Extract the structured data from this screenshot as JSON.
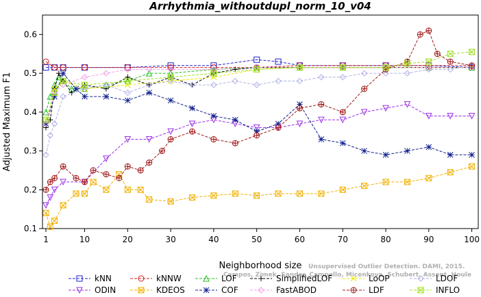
{
  "chart_data": {
    "type": "line",
    "title": "Arrhythmia_withoutdupl_norm_10_v04",
    "xlabel": "Neighborhood size",
    "ylabel": "Adjusted Maximum F1",
    "xlim": [
      1,
      100
    ],
    "ylim": [
      0.1,
      0.65
    ],
    "x_ticks": [
      1,
      10,
      20,
      30,
      40,
      50,
      60,
      70,
      80,
      90,
      100
    ],
    "y_ticks": [
      0.1,
      0.2,
      0.3,
      0.4,
      0.5,
      0.6
    ],
    "x_tick_labels": [
      "1",
      "10",
      "20",
      "30",
      "40",
      "50",
      "60",
      "70",
      "80",
      "90",
      "100"
    ],
    "y_tick_labels": [
      "0.1",
      "0.2",
      "0.3",
      "0.4",
      "0.5",
      "0.6"
    ],
    "grid": false,
    "legend_position": "bottom",
    "watermark": [
      "Campos, Zimek, Sander, Campello, Micenkova, Schubert, Assent, Houle",
      "Unsupervised Outlier Detection. DAMI, 2015."
    ],
    "series": [
      {
        "name": "kNN",
        "color": "#1f1fd0",
        "marker": "square",
        "x": [
          1,
          3,
          5,
          10,
          20,
          30,
          40,
          50,
          55,
          60,
          70,
          80,
          90,
          100
        ],
        "y": [
          0.515,
          0.515,
          0.515,
          0.515,
          0.515,
          0.52,
          0.52,
          0.535,
          0.53,
          0.52,
          0.52,
          0.52,
          0.52,
          0.515
        ]
      },
      {
        "name": "kNNW",
        "color": "#d02020",
        "marker": "circle",
        "x": [
          1,
          3,
          5,
          10,
          20,
          30,
          40,
          50,
          60,
          70,
          80,
          90,
          100
        ],
        "y": [
          0.53,
          0.515,
          0.515,
          0.515,
          0.515,
          0.515,
          0.515,
          0.515,
          0.52,
          0.52,
          0.52,
          0.52,
          0.52
        ]
      },
      {
        "name": "LOF",
        "color": "#20c020",
        "marker": "triangle-up",
        "x": [
          1,
          2,
          3,
          4,
          5,
          7,
          10,
          15,
          20,
          25,
          30,
          40,
          50,
          60,
          70,
          80,
          90,
          100
        ],
        "y": [
          0.4,
          0.44,
          0.47,
          0.49,
          0.48,
          0.46,
          0.46,
          0.47,
          0.48,
          0.5,
          0.5,
          0.51,
          0.515,
          0.515,
          0.515,
          0.515,
          0.515,
          0.515
        ]
      },
      {
        "name": "SimplifiedLOF",
        "color": "#000000",
        "marker": "plus",
        "x": [
          1,
          2,
          3,
          4,
          5,
          7,
          10,
          15,
          20,
          25,
          30,
          35,
          40,
          45,
          50,
          60,
          70,
          80,
          90,
          100
        ],
        "y": [
          0.36,
          0.38,
          0.46,
          0.5,
          0.48,
          0.45,
          0.47,
          0.46,
          0.49,
          0.47,
          0.49,
          0.47,
          0.5,
          0.51,
          0.515,
          0.515,
          0.515,
          0.515,
          0.515,
          0.515
        ]
      },
      {
        "name": "LoOP",
        "color": "#e8e800",
        "marker": "x",
        "x": [
          1,
          3,
          5,
          10,
          20,
          30,
          40,
          50,
          60,
          70,
          80,
          90,
          100
        ],
        "y": [
          0.37,
          0.46,
          0.48,
          0.46,
          0.47,
          0.48,
          0.49,
          0.51,
          0.515,
          0.515,
          0.515,
          0.515,
          0.515
        ]
      },
      {
        "name": "LDOF",
        "color": "#b0b0e8",
        "marker": "diamond",
        "x": [
          1,
          2,
          3,
          5,
          10,
          15,
          20,
          25,
          30,
          35,
          40,
          45,
          50,
          55,
          60,
          65,
          70,
          75,
          80,
          85,
          90,
          95,
          100
        ],
        "y": [
          0.29,
          0.34,
          0.37,
          0.44,
          0.46,
          0.47,
          0.45,
          0.47,
          0.48,
          0.47,
          0.47,
          0.48,
          0.47,
          0.48,
          0.48,
          0.49,
          0.49,
          0.5,
          0.5,
          0.5,
          0.51,
          0.51,
          0.52
        ]
      },
      {
        "name": "ODIN",
        "color": "#9a30e8",
        "marker": "triangle-down",
        "x": [
          1,
          2,
          3,
          5,
          10,
          15,
          20,
          25,
          30,
          35,
          40,
          45,
          50,
          55,
          60,
          65,
          70,
          75,
          80,
          85,
          90,
          95,
          100
        ],
        "y": [
          0.16,
          0.18,
          0.2,
          0.22,
          0.22,
          0.28,
          0.33,
          0.33,
          0.35,
          0.37,
          0.38,
          0.37,
          0.36,
          0.36,
          0.37,
          0.38,
          0.38,
          0.4,
          0.41,
          0.42,
          0.39,
          0.39,
          0.39
        ]
      },
      {
        "name": "KDEOS",
        "color": "#f0b000",
        "marker": "square-x",
        "x": [
          1,
          2,
          3,
          5,
          8,
          10,
          12,
          15,
          18,
          20,
          23,
          25,
          30,
          35,
          40,
          45,
          50,
          55,
          60,
          65,
          70,
          75,
          80,
          85,
          90,
          95,
          100
        ],
        "y": [
          0.14,
          0.105,
          0.12,
          0.16,
          0.19,
          0.19,
          0.22,
          0.2,
          0.24,
          0.2,
          0.2,
          0.175,
          0.17,
          0.18,
          0.185,
          0.19,
          0.185,
          0.19,
          0.19,
          0.19,
          0.2,
          0.21,
          0.22,
          0.22,
          0.23,
          0.245,
          0.26
        ]
      },
      {
        "name": "COF",
        "color": "#102090",
        "marker": "asterisk",
        "x": [
          1,
          3,
          5,
          8,
          10,
          15,
          20,
          25,
          30,
          35,
          40,
          45,
          50,
          55,
          60,
          65,
          70,
          75,
          80,
          85,
          90,
          95,
          100
        ],
        "y": [
          0.37,
          0.44,
          0.5,
          0.46,
          0.44,
          0.44,
          0.43,
          0.45,
          0.43,
          0.41,
          0.39,
          0.38,
          0.35,
          0.37,
          0.42,
          0.33,
          0.32,
          0.3,
          0.29,
          0.3,
          0.31,
          0.29,
          0.29
        ]
      },
      {
        "name": "FastABOD",
        "color": "#f0a0e8",
        "marker": "diamond",
        "x": [
          1,
          3,
          5,
          10,
          15,
          20,
          25,
          30,
          40,
          50,
          60,
          70,
          80,
          90,
          100
        ],
        "y": [
          0.37,
          0.45,
          0.47,
          0.49,
          0.5,
          0.51,
          0.51,
          0.51,
          0.51,
          0.515,
          0.515,
          0.515,
          0.515,
          0.515,
          0.515
        ]
      },
      {
        "name": "LDF",
        "color": "#a01818",
        "marker": "circle-plus",
        "x": [
          1,
          2,
          3,
          5,
          8,
          10,
          12,
          15,
          18,
          20,
          23,
          25,
          28,
          30,
          35,
          40,
          45,
          50,
          55,
          60,
          65,
          70,
          75,
          80,
          85,
          88,
          90,
          92,
          95,
          100
        ],
        "y": [
          0.2,
          0.22,
          0.23,
          0.26,
          0.23,
          0.22,
          0.25,
          0.24,
          0.23,
          0.26,
          0.25,
          0.27,
          0.3,
          0.33,
          0.35,
          0.33,
          0.32,
          0.34,
          0.36,
          0.41,
          0.42,
          0.4,
          0.46,
          0.51,
          0.53,
          0.6,
          0.61,
          0.55,
          0.53,
          0.52
        ]
      },
      {
        "name": "INFLO",
        "color": "#a0e020",
        "marker": "square-x",
        "x": [
          1,
          3,
          5,
          10,
          20,
          30,
          40,
          50,
          60,
          70,
          80,
          85,
          90,
          95,
          100
        ],
        "y": [
          0.38,
          0.45,
          0.48,
          0.47,
          0.48,
          0.49,
          0.5,
          0.51,
          0.515,
          0.515,
          0.515,
          0.525,
          0.53,
          0.55,
          0.555
        ]
      }
    ],
    "legend": {
      "rows": [
        [
          "kNN",
          "kNNW",
          "LOF",
          "SimplifiedLOF",
          "LoOP",
          "LDOF"
        ],
        [
          "ODIN",
          "KDEOS",
          "COF",
          "FastABOD",
          "LDF",
          "INFLO"
        ]
      ]
    }
  }
}
